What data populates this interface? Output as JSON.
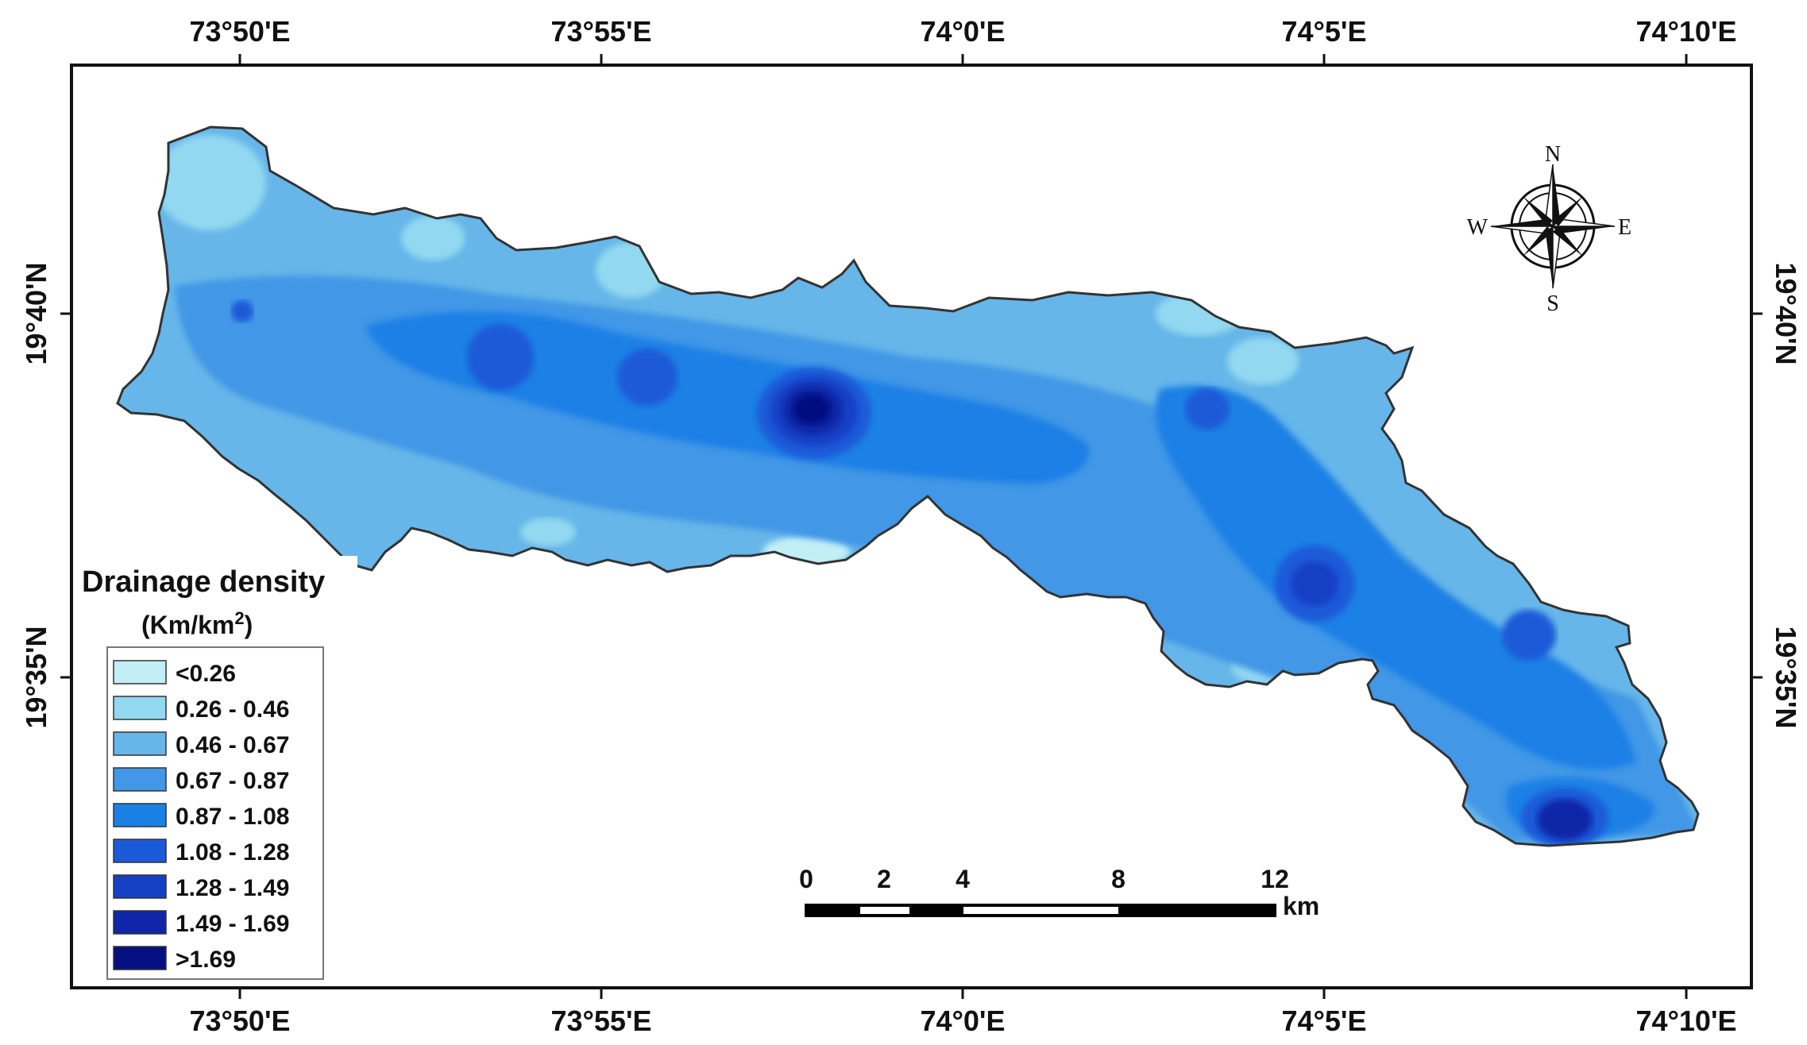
{
  "map": {
    "top_ticks": [
      "73°50'E",
      "73°55'E",
      "74°0'E",
      "74°5'E",
      "74°10'E"
    ],
    "bottom_ticks": [
      "73°50'E",
      "73°55'E",
      "74°0'E",
      "74°5'E",
      "74°10'E"
    ],
    "left_ticks": [
      "19°40'N",
      "19°35'N"
    ],
    "right_ticks": [
      "19°40'N",
      "19°35'N"
    ]
  },
  "legend": {
    "title": "Drainage density",
    "unit_base": "(Km/km",
    "unit_sup": "2",
    "unit_close": ")",
    "classes": [
      {
        "label": "<0.26",
        "color": "#c2eef5"
      },
      {
        "label": "0.26 - 0.46",
        "color": "#92d8f0"
      },
      {
        "label": "0.46 - 0.67",
        "color": "#66b6e9"
      },
      {
        "label": "0.67 - 0.87",
        "color": "#4297e6"
      },
      {
        "label": "0.87 - 1.08",
        "color": "#1a80e6"
      },
      {
        "label": "1.08 - 1.28",
        "color": "#1a5ad8"
      },
      {
        "label": "1.28 - 1.49",
        "color": "#1640c4"
      },
      {
        "label": "1.49 - 1.69",
        "color": "#0f26a8"
      },
      {
        "label": ">1.69",
        "color": "#061080"
      }
    ]
  },
  "scale_bar": {
    "labels": [
      "0",
      "2",
      "4",
      "8",
      "12"
    ],
    "unit": "km"
  },
  "north_arrow": {
    "n": "N",
    "s": "S",
    "e": "E",
    "w": "W"
  }
}
